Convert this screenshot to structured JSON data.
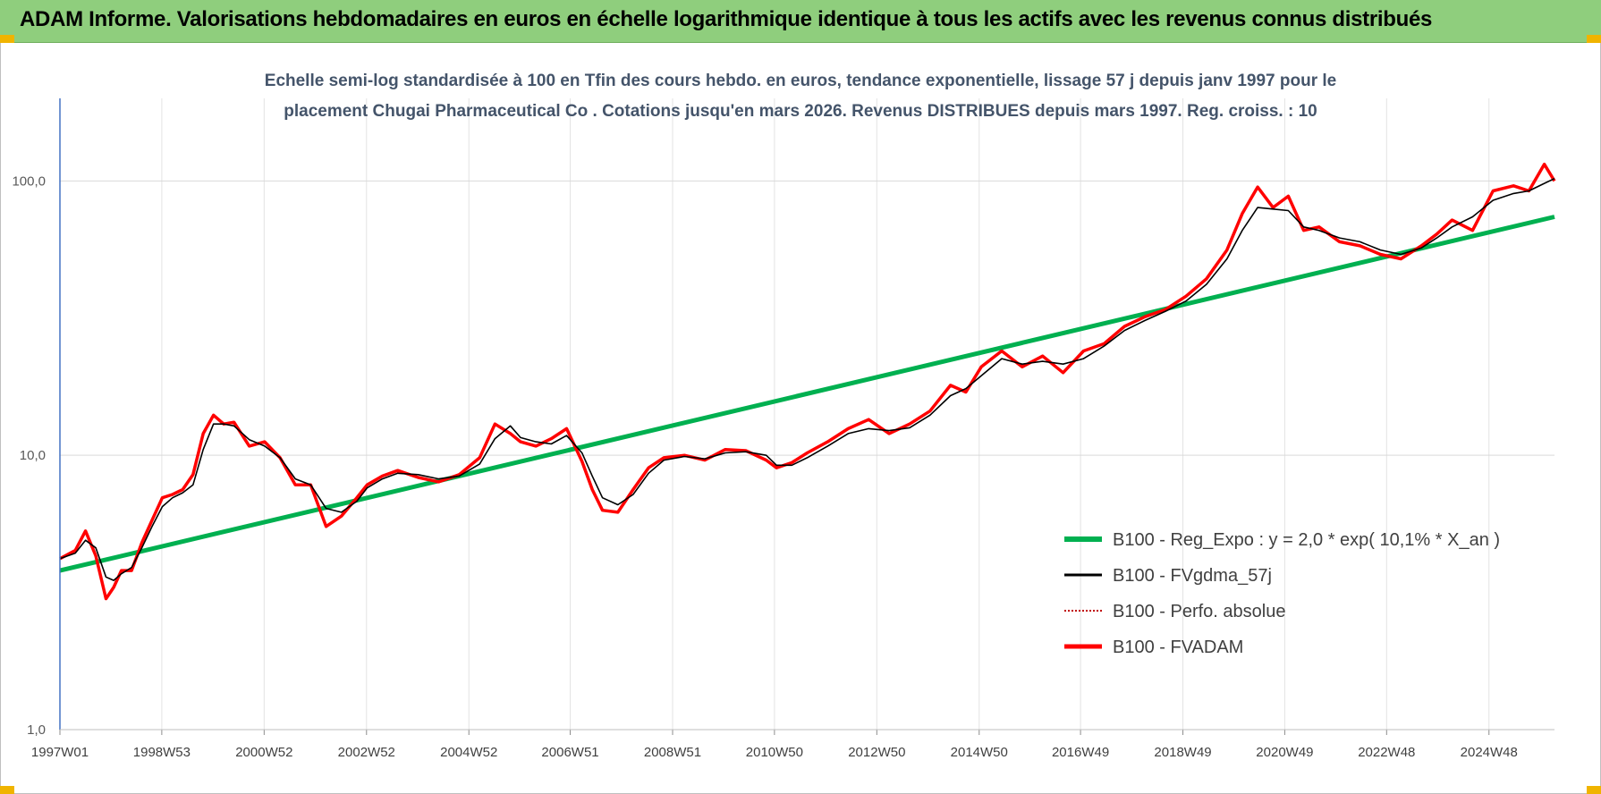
{
  "header": {
    "title": "ADAM Informe. Valorisations hebdomadaires en euros en échelle logarithmique identique à tous les actifs avec les revenus connus distribués"
  },
  "colors": {
    "title_bg": "#8fce7d",
    "regression": "#00b050",
    "smoothed": "#000000",
    "perfo": "#c00000",
    "fvadam": "#ff0000",
    "grid": "#d9d9d9"
  },
  "chart_data": {
    "type": "line",
    "subtitle_lines": [
      "Echelle semi-log standardisée à 100 en Tfin des cours hebdo. en euros, tendance exponentielle, lissage 57 j depuis janv 1997 pour le",
      "placement Chugai Pharmaceutical Co . Cotations jusqu'en mars 2026. Revenus DISTRIBUES depuis mars 1997.  Reg. croiss. : 10"
    ],
    "y_scale": "log",
    "ylim": [
      1,
      200
    ],
    "y_ticks": [
      1,
      10,
      100
    ],
    "y_tick_labels": [
      "1,0",
      "10,0",
      "100,0"
    ],
    "x_range_years": [
      1997.0,
      2026.2
    ],
    "x_tick_years": [
      1997.0,
      1998.99,
      2000.99,
      2002.99,
      2004.99,
      2006.97,
      2008.97,
      2010.96,
      2012.96,
      2014.96,
      2016.94,
      2018.94,
      2020.93,
      2022.92,
      2024.92
    ],
    "x_tick_labels": [
      "1997W01",
      "1998W53",
      "2000W52",
      "2002W52",
      "2004W52",
      "2006W51",
      "2008W51",
      "2010W50",
      "2012W50",
      "2014W50",
      "2016W49",
      "2018W49",
      "2020W49",
      "2022W48",
      "2024W48"
    ],
    "grid": true,
    "legend_position": "bottom-right",
    "series": [
      {
        "name": "B100 - Reg_Expo : y = 2,0 * exp( 10,1% *  X_an )",
        "kind": "regression",
        "color": "#00b050",
        "x": [
          1997.0,
          2026.2
        ],
        "y": [
          3.8,
          74
        ]
      },
      {
        "name": "B100 - FVgdma_57j",
        "kind": "smoothed",
        "color": "#000000",
        "x": [
          1997.0,
          1997.3,
          1997.5,
          1997.7,
          1997.9,
          1998.05,
          1998.2,
          1998.4,
          1998.6,
          1998.8,
          1999.0,
          1999.2,
          1999.4,
          1999.6,
          1999.8,
          2000.0,
          2000.2,
          2000.4,
          2000.7,
          2001.0,
          2001.3,
          2001.6,
          2001.9,
          2002.2,
          2002.5,
          2002.8,
          2003.0,
          2003.3,
          2003.6,
          2004.0,
          2004.4,
          2004.8,
          2005.2,
          2005.5,
          2005.8,
          2006.0,
          2006.3,
          2006.6,
          2006.9,
          2007.2,
          2007.4,
          2007.6,
          2007.9,
          2008.2,
          2008.5,
          2008.8,
          2009.2,
          2009.6,
          2010.0,
          2010.4,
          2010.8,
          2011.0,
          2011.3,
          2011.6,
          2012.0,
          2012.4,
          2012.8,
          2013.2,
          2013.6,
          2014.0,
          2014.4,
          2014.7,
          2015.0,
          2015.4,
          2015.8,
          2016.2,
          2016.6,
          2017.0,
          2017.4,
          2017.8,
          2018.2,
          2018.6,
          2019.0,
          2019.4,
          2019.8,
          2020.1,
          2020.4,
          2020.7,
          2021.0,
          2021.3,
          2021.6,
          2022.0,
          2022.4,
          2022.8,
          2023.2,
          2023.6,
          2023.9,
          2024.2,
          2024.6,
          2025.0,
          2025.4,
          2025.7,
          2026.0,
          2026.2
        ],
        "y": [
          4.2,
          4.4,
          4.9,
          4.6,
          3.6,
          3.5,
          3.7,
          3.9,
          4.6,
          5.5,
          6.5,
          7.0,
          7.3,
          7.8,
          10.5,
          13.0,
          13.0,
          12.8,
          11.4,
          10.8,
          9.8,
          8.2,
          7.8,
          6.4,
          6.2,
          6.8,
          7.6,
          8.2,
          8.6,
          8.5,
          8.2,
          8.4,
          9.3,
          11.5,
          12.8,
          11.6,
          11.2,
          11.0,
          11.8,
          10.2,
          8.4,
          7.0,
          6.6,
          7.2,
          8.6,
          9.6,
          9.9,
          9.7,
          10.2,
          10.3,
          10.0,
          9.2,
          9.2,
          9.8,
          10.8,
          12.0,
          12.5,
          12.3,
          12.6,
          14.0,
          16.5,
          17.5,
          19.5,
          22.5,
          21.5,
          22.0,
          21.5,
          22.5,
          25.0,
          28.5,
          31.0,
          33.5,
          36.5,
          42.0,
          52.0,
          66.0,
          80.0,
          79.0,
          78.0,
          68.0,
          66.0,
          62.0,
          60.0,
          56.0,
          54.0,
          57.0,
          62.0,
          68.0,
          74.0,
          85.0,
          90.0,
          92.0,
          98.0,
          102.0
        ]
      },
      {
        "name": "B100 - Perfo. absolue",
        "kind": "perfo",
        "color": "#c00000"
      },
      {
        "name": "B100 - FVADAM",
        "kind": "fvadam",
        "color": "#ff0000",
        "x": [
          1997.0,
          1997.3,
          1997.5,
          1997.7,
          1997.9,
          1998.05,
          1998.2,
          1998.4,
          1998.6,
          1998.8,
          1999.0,
          1999.2,
          1999.4,
          1999.6,
          1999.8,
          2000.0,
          2000.2,
          2000.4,
          2000.7,
          2001.0,
          2001.3,
          2001.6,
          2001.9,
          2002.2,
          2002.5,
          2002.8,
          2003.0,
          2003.3,
          2003.6,
          2004.0,
          2004.4,
          2004.8,
          2005.2,
          2005.5,
          2005.8,
          2006.0,
          2006.3,
          2006.6,
          2006.9,
          2007.2,
          2007.4,
          2007.6,
          2007.9,
          2008.2,
          2008.5,
          2008.8,
          2009.2,
          2009.6,
          2010.0,
          2010.4,
          2010.8,
          2011.0,
          2011.3,
          2011.6,
          2012.0,
          2012.4,
          2012.8,
          2013.2,
          2013.6,
          2014.0,
          2014.4,
          2014.7,
          2015.0,
          2015.4,
          2015.8,
          2016.2,
          2016.6,
          2017.0,
          2017.4,
          2017.8,
          2018.2,
          2018.6,
          2019.0,
          2019.4,
          2019.8,
          2020.1,
          2020.4,
          2020.7,
          2021.0,
          2021.3,
          2021.6,
          2022.0,
          2022.4,
          2022.8,
          2023.2,
          2023.6,
          2023.9,
          2024.2,
          2024.6,
          2025.0,
          2025.4,
          2025.7,
          2026.0,
          2026.2
        ],
        "y": [
          4.2,
          4.5,
          5.3,
          4.3,
          3.0,
          3.3,
          3.8,
          3.8,
          4.8,
          5.8,
          7.0,
          7.2,
          7.5,
          8.5,
          12.0,
          14.0,
          13.0,
          13.2,
          10.8,
          11.2,
          9.8,
          7.8,
          7.8,
          5.5,
          6.0,
          7.0,
          7.8,
          8.4,
          8.8,
          8.3,
          8.0,
          8.5,
          9.8,
          13.0,
          12.0,
          11.2,
          10.8,
          11.5,
          12.5,
          9.5,
          7.5,
          6.3,
          6.2,
          7.5,
          9.0,
          9.8,
          10.0,
          9.6,
          10.5,
          10.4,
          9.6,
          9.0,
          9.4,
          10.2,
          11.2,
          12.5,
          13.5,
          12.0,
          13.0,
          14.5,
          18.0,
          17.0,
          21.0,
          24.0,
          21.0,
          23.0,
          20.0,
          24.0,
          25.5,
          29.5,
          32.0,
          34.0,
          38.0,
          44.0,
          56.0,
          76.0,
          95.0,
          80.0,
          88.0,
          66.0,
          68.0,
          60.0,
          58.0,
          54.0,
          52.0,
          58.0,
          64.0,
          72.0,
          66.0,
          92.0,
          96.0,
          92.0,
          115.0,
          100.0
        ]
      }
    ]
  }
}
